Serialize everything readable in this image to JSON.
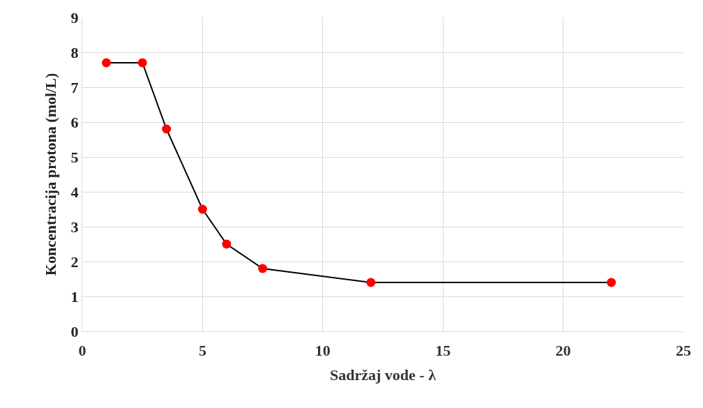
{
  "chart_data": {
    "type": "line",
    "xlabel": "Sadržaj vode - λ",
    "ylabel": "Koncentracija protona (mol/L)",
    "x": [
      1,
      2.5,
      3.5,
      5,
      6,
      7.5,
      12,
      22
    ],
    "series": [
      {
        "color": "#000000",
        "colors": [
          "#ff0000",
          "#ff0000",
          "#ff0000",
          "#ff0000",
          "#ff0000",
          "#ff0000",
          "#ff0000",
          "#ff0000"
        ],
        "values": [
          7.7,
          7.7,
          5.8,
          3.5,
          2.5,
          1.8,
          1.4,
          1.4
        ]
      }
    ],
    "xlim": [
      0,
      25
    ],
    "xticks": [
      0,
      5,
      10,
      15,
      20,
      25
    ],
    "ylim": [
      0,
      9
    ],
    "yticks": [
      0,
      1,
      2,
      3,
      4,
      5,
      6,
      7,
      8,
      9
    ],
    "grid": true,
    "marker": "circle",
    "line_style": "solid",
    "legend": false
  }
}
